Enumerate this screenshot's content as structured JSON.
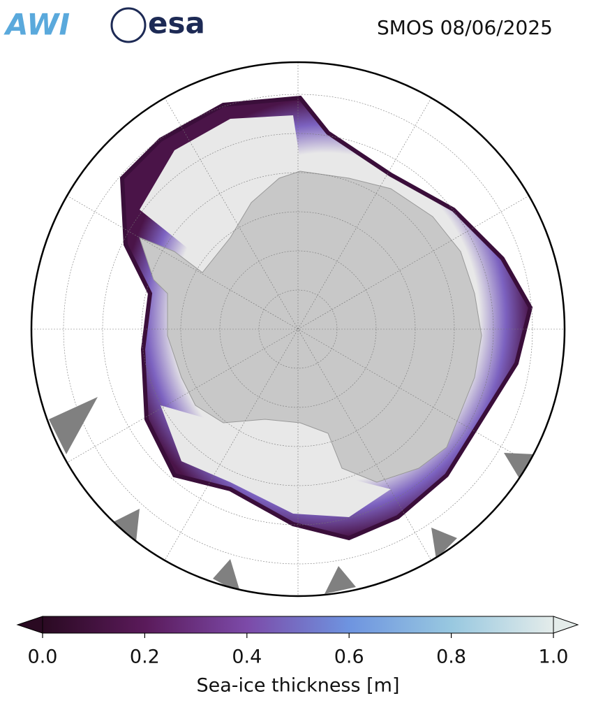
{
  "header": {
    "logos": [
      "AWI",
      "esa"
    ],
    "title": "SMOS 08/06/2025"
  },
  "colorbar": {
    "label": "Sea-ice thickness [m]",
    "lim": [
      0,
      1
    ],
    "ticks": [
      {
        "value": 0,
        "label": "0.0"
      },
      0.2,
      0.4,
      0.6,
      0.8,
      {
        "value": 1,
        "label": "1.0"
      }
    ]
  }
}
